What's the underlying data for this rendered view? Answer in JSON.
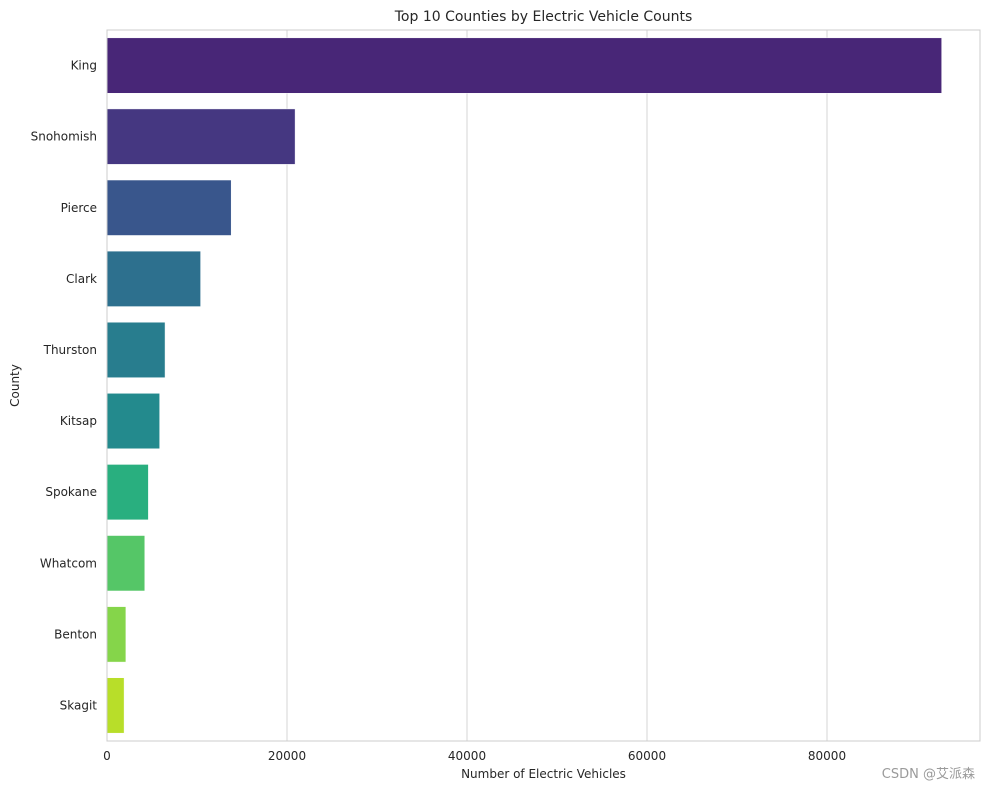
{
  "chart_data": {
    "type": "bar",
    "orientation": "horizontal",
    "title": "Top 10 Counties by Electric Vehicle Counts",
    "xlabel": "Number of Electric Vehicles",
    "ylabel": "County",
    "categories": [
      "King",
      "Snohomish",
      "Pierce",
      "Clark",
      "Thurston",
      "Kitsap",
      "Spokane",
      "Whatcom",
      "Benton",
      "Skagit"
    ],
    "values": [
      92740,
      20900,
      13800,
      10400,
      6450,
      5850,
      4600,
      4200,
      2100,
      1900
    ],
    "colors": [
      "#482677",
      "#453781",
      "#39568c",
      "#2d708e",
      "#287d8e",
      "#238a8d",
      "#29af7f",
      "#55c667",
      "#85d54a",
      "#b8de29"
    ],
    "xlim": [
      0,
      97000
    ],
    "xticks": [
      0,
      20000,
      40000,
      60000,
      80000
    ],
    "xtick_labels": [
      "0",
      "20000",
      "40000",
      "60000",
      "80000"
    ],
    "grid": "vertical",
    "legend": "none"
  },
  "watermark": "CSDN @艾派森"
}
